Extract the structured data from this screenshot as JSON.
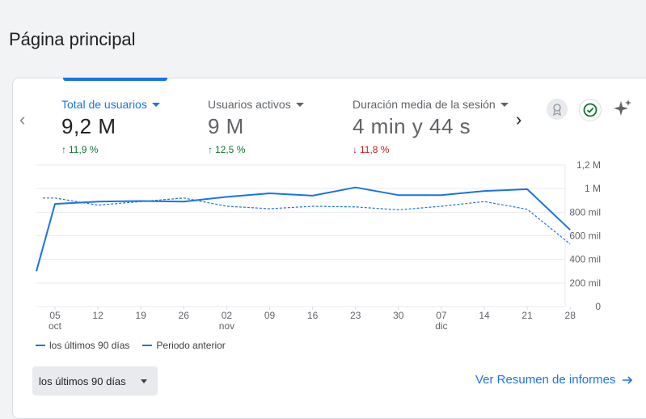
{
  "page": {
    "title": "Página principal"
  },
  "metrics": [
    {
      "label": "Total de usuarios",
      "value": "9,2 M",
      "delta": "11,9 %",
      "direction": "up",
      "active": true
    },
    {
      "label": "Usuarios activos",
      "value": "9 M",
      "delta": "12,5 %",
      "direction": "up",
      "active": false
    },
    {
      "label": "Duración media de la sesión",
      "value": "4 min y 44 s",
      "delta": "11,8 %",
      "direction": "down",
      "active": false
    }
  ],
  "icons": {
    "nav_prev": "chevron-left-icon",
    "nav_next": "chevron-right-icon",
    "insights": "insights-icon",
    "check": "check-circle-icon",
    "sparkle": "sparkle-icon"
  },
  "colors": {
    "accent": "#1a73e8",
    "positive": "#137333",
    "negative": "#c5221f"
  },
  "chart_data": {
    "type": "line",
    "y_ticks": [
      "1,2 M",
      "1 M",
      "800 mil",
      "600 mil",
      "400 mil",
      "200 mil",
      "0"
    ],
    "y_tick_values": [
      1200000,
      1000000,
      800000,
      600000,
      400000,
      200000,
      0
    ],
    "ylim": [
      0,
      1200000
    ],
    "x_ticks": [
      {
        "label": "05",
        "sub": "oct"
      },
      {
        "label": "12",
        "sub": ""
      },
      {
        "label": "19",
        "sub": ""
      },
      {
        "label": "26",
        "sub": ""
      },
      {
        "label": "02",
        "sub": "nov"
      },
      {
        "label": "09",
        "sub": ""
      },
      {
        "label": "16",
        "sub": ""
      },
      {
        "label": "23",
        "sub": ""
      },
      {
        "label": "30",
        "sub": ""
      },
      {
        "label": "07",
        "sub": "dic"
      },
      {
        "label": "14",
        "sub": ""
      },
      {
        "label": "21",
        "sub": ""
      },
      {
        "label": "28",
        "sub": ""
      }
    ],
    "series": [
      {
        "name": "los últimos 90 días",
        "style": "solid",
        "values": [
          300000,
          870000,
          890000,
          895000,
          890000,
          930000,
          960000,
          940000,
          1010000,
          945000,
          945000,
          980000,
          995000,
          650000
        ]
      },
      {
        "name": "Periodo anterior",
        "style": "dashed",
        "values": [
          920000,
          920000,
          860000,
          890000,
          920000,
          850000,
          830000,
          850000,
          845000,
          820000,
          850000,
          890000,
          825000,
          530000
        ]
      }
    ],
    "x_positions": [
      -1,
      0,
      1,
      2,
      3,
      4,
      5,
      6,
      7,
      8,
      9,
      10,
      11,
      12
    ],
    "grid": true
  },
  "legend": {
    "current": "los últimos 90 días",
    "previous": "Periodo anterior"
  },
  "footer": {
    "range_label": "los últimos 90 días",
    "report_link": "Ver Resumen de informes"
  }
}
